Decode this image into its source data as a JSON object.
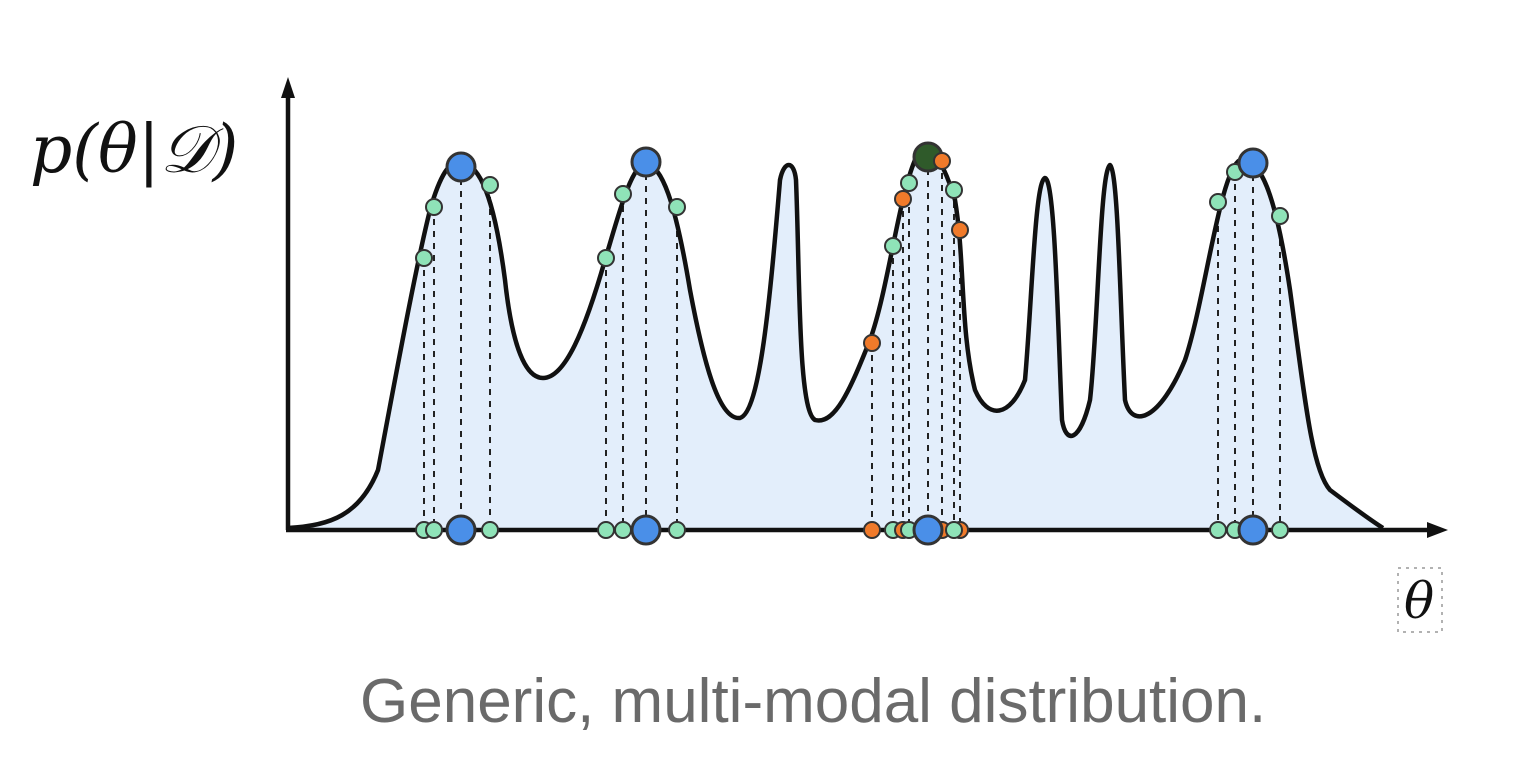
{
  "diagram": {
    "y_axis_label": "p(θ|𝒟)",
    "x_axis_label": "θ",
    "caption": "Generic, multi-modal distribution.",
    "colors": {
      "fill": "#e3eefb",
      "curve": "#111111",
      "blue_sample": "#4a8fe8",
      "green_sample": "#8fe3b8",
      "orange_sample": "#f07a2a",
      "dark_green_sample": "#2f5a2a",
      "caption": "#6a6a6a"
    }
  }
}
